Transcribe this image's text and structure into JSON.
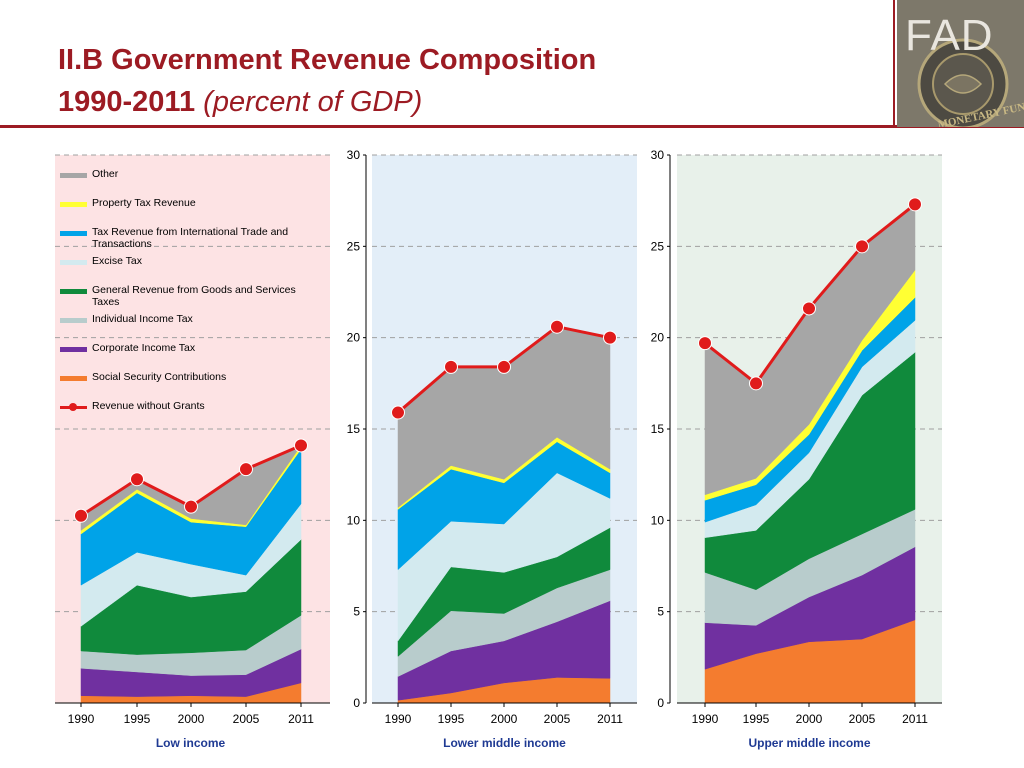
{
  "title": {
    "line1": "II.B Government Revenue Composition",
    "years": "1990-2011",
    "unit": "(percent of GDP)"
  },
  "logo": {
    "text": "FAD",
    "seal_text": "MONETARY FUND"
  },
  "colors": {
    "title": "#9c1b23",
    "panel_backgrounds": [
      "#fde3e4",
      "#e3eef8",
      "#e8f1ea"
    ],
    "revenue_line": "#e01b1b"
  },
  "chart_data": [
    {
      "type": "area",
      "subtitle": "Low income",
      "x": [
        "1990",
        "1995",
        "2000",
        "2005",
        "2011"
      ],
      "ylim": [
        0,
        30
      ],
      "yticks": [
        "0",
        "5",
        "10",
        "15",
        "20",
        "25",
        "30"
      ],
      "show_yaxis": false,
      "stacked": true,
      "series": [
        {
          "name": "Social Security Contributions",
          "color": "#f47c2f",
          "values": [
            0.4,
            0.35,
            0.4,
            0.35,
            1.1
          ]
        },
        {
          "name": "Corporate Income Tax",
          "color": "#7030a0",
          "values": [
            1.5,
            1.35,
            1.1,
            1.2,
            1.85
          ]
        },
        {
          "name": "Individual Income Tax",
          "color": "#b8cccc",
          "values": [
            0.95,
            0.95,
            1.25,
            1.35,
            1.85
          ]
        },
        {
          "name": "General Revenue from Goods and Services Taxes",
          "color": "#108a3c",
          "values": [
            1.35,
            3.8,
            3.05,
            3.2,
            4.15
          ]
        },
        {
          "name": "Excise Tax",
          "color": "#d3eaef",
          "values": [
            2.25,
            1.8,
            1.8,
            0.9,
            1.95
          ]
        },
        {
          "name": "Tax Revenue from International Trade and Transactions",
          "color": "#00a3e8",
          "values": [
            2.8,
            3.25,
            2.3,
            2.65,
            3.0
          ]
        },
        {
          "name": "Property Tax Revenue",
          "color": "#ffff33",
          "values": [
            0.2,
            0.2,
            0.2,
            0.1,
            0.2
          ]
        },
        {
          "name": "Other",
          "color": "#a6a6a6",
          "values": [
            0.8,
            0.55,
            0.65,
            3.1,
            0.0
          ]
        }
      ],
      "line": {
        "name": "Revenue without Grants",
        "color": "#e01b1b",
        "values": [
          10.25,
          12.25,
          10.75,
          12.8,
          14.1
        ]
      }
    },
    {
      "type": "area",
      "subtitle": "Lower middle income",
      "x": [
        "1990",
        "1995",
        "2000",
        "2005",
        "2011"
      ],
      "ylim": [
        0,
        30
      ],
      "yticks": [
        "0",
        "5",
        "10",
        "15",
        "20",
        "25",
        "30"
      ],
      "show_yaxis": true,
      "stacked": true,
      "series": [
        {
          "name": "Social Security Contributions",
          "color": "#f47c2f",
          "values": [
            0.15,
            0.55,
            1.1,
            1.4,
            1.35
          ]
        },
        {
          "name": "Corporate Income Tax",
          "color": "#7030a0",
          "values": [
            1.3,
            2.3,
            2.3,
            3.05,
            4.25
          ]
        },
        {
          "name": "Individual Income Tax",
          "color": "#b8cccc",
          "values": [
            1.1,
            2.2,
            1.5,
            1.85,
            1.7
          ]
        },
        {
          "name": "General Revenue from Goods and Services Taxes",
          "color": "#108a3c",
          "values": [
            0.85,
            2.4,
            2.25,
            1.7,
            2.3
          ]
        },
        {
          "name": "Excise Tax",
          "color": "#d3eaef",
          "values": [
            3.9,
            2.5,
            2.65,
            4.6,
            1.6
          ]
        },
        {
          "name": "Tax Revenue from International Trade and Transactions",
          "color": "#00a3e8",
          "values": [
            3.3,
            2.85,
            2.25,
            1.7,
            1.4
          ]
        },
        {
          "name": "Property Tax Revenue",
          "color": "#ffff33",
          "values": [
            0.1,
            0.2,
            0.2,
            0.25,
            0.2
          ]
        },
        {
          "name": "Other",
          "color": "#a6a6a6",
          "values": [
            5.25,
            5.4,
            6.15,
            6.05,
            7.2
          ]
        }
      ],
      "line": {
        "name": "Revenue without Grants",
        "color": "#e01b1b",
        "values": [
          15.9,
          18.4,
          18.4,
          20.6,
          20.0
        ]
      }
    },
    {
      "type": "area",
      "subtitle": "Upper middle income",
      "x": [
        "1990",
        "1995",
        "2000",
        "2005",
        "2011"
      ],
      "ylim": [
        0,
        30
      ],
      "yticks": [
        "0",
        "5",
        "10",
        "15",
        "20",
        "25",
        "30"
      ],
      "show_yaxis": true,
      "stacked": true,
      "series": [
        {
          "name": "Social Security Contributions",
          "color": "#f47c2f",
          "values": [
            1.85,
            2.7,
            3.35,
            3.5,
            4.55
          ]
        },
        {
          "name": "Corporate Income Tax",
          "color": "#7030a0",
          "values": [
            2.55,
            1.55,
            2.45,
            3.5,
            4.0
          ]
        },
        {
          "name": "Individual Income Tax",
          "color": "#b8cccc",
          "values": [
            2.75,
            1.95,
            2.1,
            2.25,
            2.05
          ]
        },
        {
          "name": "General Revenue from Goods and Services Taxes",
          "color": "#108a3c",
          "values": [
            1.9,
            3.25,
            4.35,
            7.6,
            8.6
          ]
        },
        {
          "name": "Excise Tax",
          "color": "#d3eaef",
          "values": [
            0.85,
            1.4,
            1.45,
            1.55,
            1.75
          ]
        },
        {
          "name": "Tax Revenue from International Trade and Transactions",
          "color": "#00a3e8",
          "values": [
            1.2,
            1.1,
            1.0,
            0.9,
            1.25
          ]
        },
        {
          "name": "Property Tax Revenue",
          "color": "#ffff33",
          "values": [
            0.3,
            0.35,
            0.55,
            0.55,
            1.5
          ]
        },
        {
          "name": "Other",
          "color": "#a6a6a6",
          "values": [
            8.2,
            5.1,
            6.35,
            5.2,
            3.6
          ]
        }
      ],
      "line": {
        "name": "Revenue without Grants",
        "color": "#e01b1b",
        "values": [
          19.7,
          17.5,
          21.6,
          25.0,
          27.3
        ]
      }
    }
  ],
  "legend": [
    {
      "label": "Other",
      "color": "#a6a6a6",
      "kind": "area"
    },
    {
      "label": "Property Tax Revenue",
      "color": "#ffff33",
      "kind": "area"
    },
    {
      "label": "Tax Revenue from International Trade and Transactions",
      "color": "#00a3e8",
      "kind": "area"
    },
    {
      "label": " Excise Tax",
      "color": "#d3eaef",
      "kind": "area"
    },
    {
      "label": "General Revenue from Goods and Services Taxes",
      "color": "#108a3c",
      "kind": "area"
    },
    {
      "label": "Individual Income Tax",
      "color": "#b8cccc",
      "kind": "area"
    },
    {
      "label": "Corporate Income Tax",
      "color": "#7030a0",
      "kind": "area"
    },
    {
      "label": "Social Security Contributions",
      "color": "#f47c2f",
      "kind": "area"
    },
    {
      "label": "Revenue without Grants",
      "color": "#e01b1b",
      "kind": "line"
    }
  ]
}
